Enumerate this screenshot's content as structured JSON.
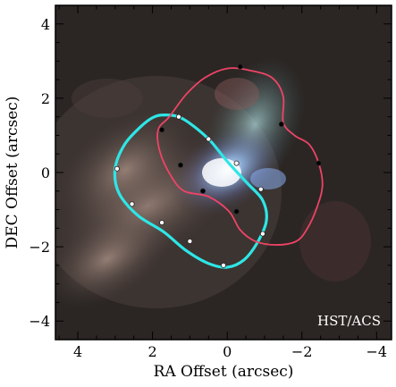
{
  "chart_data": {
    "type": "scatter",
    "xlabel": "RA Offset (arcsec)",
    "ylabel": "DEC Offset (arcsec)",
    "xlim": [
      4.6,
      -4.4
    ],
    "ylim": [
      -4.5,
      4.5
    ],
    "x_ticks": [
      4,
      2,
      0,
      -2,
      -4
    ],
    "y_ticks": [
      4,
      2,
      0,
      -2,
      -4
    ],
    "x_tick_labels": [
      "4",
      "2",
      "0",
      "−2",
      "−4"
    ],
    "y_tick_labels": [
      "4",
      "2",
      "0",
      "−2",
      "−4"
    ],
    "annotation": "HST/ACS",
    "series": [
      {
        "color": "#2ee6e6",
        "curve": [
          [
            1.65,
            1.55
          ],
          [
            1.3,
            1.5
          ],
          [
            0.9,
            1.25
          ],
          [
            0.45,
            0.85
          ],
          [
            0.0,
            0.3
          ],
          [
            -0.55,
            -0.3
          ],
          [
            -0.95,
            -0.75
          ],
          [
            -1.05,
            -1.3
          ],
          [
            -0.8,
            -1.9
          ],
          [
            -0.45,
            -2.35
          ],
          [
            0.0,
            -2.55
          ],
          [
            0.5,
            -2.45
          ],
          [
            1.1,
            -2.1
          ],
          [
            1.7,
            -1.6
          ],
          [
            2.4,
            -1.15
          ],
          [
            2.9,
            -0.55
          ],
          [
            3.0,
            0.1
          ],
          [
            2.75,
            0.75
          ],
          [
            2.3,
            1.25
          ],
          [
            1.95,
            1.5
          ],
          [
            1.65,
            1.55
          ]
        ],
        "markers": [
          {
            "x": 1.3,
            "y": 1.5,
            "fill": "#ffffff"
          },
          {
            "x": 0.5,
            "y": 0.9,
            "fill": "#ffffff"
          },
          {
            "x": -0.25,
            "y": 0.25,
            "fill": "#ffffff"
          },
          {
            "x": -0.9,
            "y": -0.45,
            "fill": "#ffffff"
          },
          {
            "x": -0.95,
            "y": -1.65,
            "fill": "#ffffff"
          },
          {
            "x": 0.1,
            "y": -2.5,
            "fill": "#ffffff"
          },
          {
            "x": 1.0,
            "y": -1.85,
            "fill": "#ffffff"
          },
          {
            "x": 1.75,
            "y": -1.35,
            "fill": "#ffffff"
          },
          {
            "x": 2.55,
            "y": -0.85,
            "fill": "#ffffff"
          },
          {
            "x": 2.95,
            "y": 0.1,
            "fill": "#ffffff"
          }
        ]
      },
      {
        "color": "#ee4466",
        "curve": [
          [
            1.85,
            1.15
          ],
          [
            1.55,
            1.5
          ],
          [
            1.1,
            2.1
          ],
          [
            0.6,
            2.55
          ],
          [
            0.0,
            2.8
          ],
          [
            -0.6,
            2.75
          ],
          [
            -1.2,
            2.55
          ],
          [
            -1.5,
            2.05
          ],
          [
            -1.5,
            1.35
          ],
          [
            -1.8,
            1.0
          ],
          [
            -2.2,
            0.75
          ],
          [
            -2.45,
            0.25
          ],
          [
            -2.55,
            -0.35
          ],
          [
            -2.4,
            -0.95
          ],
          [
            -2.15,
            -1.5
          ],
          [
            -1.85,
            -1.85
          ],
          [
            -1.3,
            -1.95
          ],
          [
            -0.75,
            -1.85
          ],
          [
            -0.35,
            -1.55
          ],
          [
            -0.05,
            -1.05
          ],
          [
            0.5,
            -0.65
          ],
          [
            1.15,
            -0.5
          ],
          [
            1.5,
            -0.1
          ],
          [
            1.8,
            0.55
          ],
          [
            1.85,
            1.15
          ]
        ],
        "markers": [
          {
            "x": 1.75,
            "y": 1.15,
            "fill": "#000000"
          },
          {
            "x": 1.25,
            "y": 0.2,
            "fill": "#000000"
          },
          {
            "x": 0.65,
            "y": -0.5,
            "fill": "#000000"
          },
          {
            "x": -0.25,
            "y": -1.05,
            "fill": "#000000"
          },
          {
            "x": -0.35,
            "y": 2.85,
            "fill": "#000000"
          },
          {
            "x": -1.45,
            "y": 1.3,
            "fill": "#000000"
          },
          {
            "x": -2.45,
            "y": 0.25,
            "fill": "#000000"
          }
        ]
      }
    ]
  }
}
